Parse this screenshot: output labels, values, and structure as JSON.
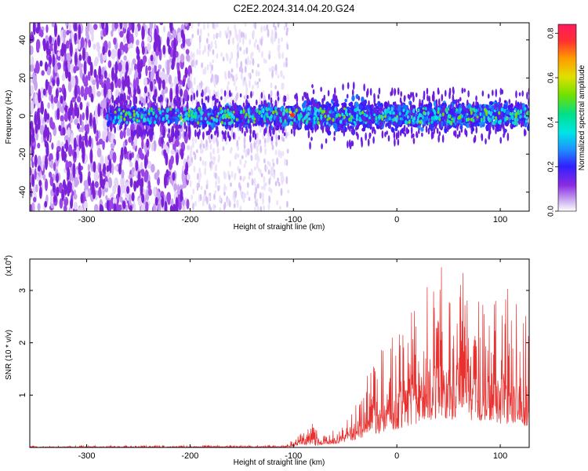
{
  "title": "C2E2.2024.314.04.20.G24",
  "chart_data": [
    {
      "type": "heatmap",
      "xlabel": "Height of straight line (km)",
      "ylabel": "Frequency (Hz)",
      "xlim": [
        -355,
        128
      ],
      "ylim": [
        -50,
        49
      ],
      "x_ticks": [
        -300,
        -200,
        -100,
        0,
        100
      ],
      "x_tick_labels": [
        "-300",
        "-200",
        "-100",
        "0",
        "100"
      ],
      "y_ticks": [
        -40,
        -20,
        0,
        20,
        40
      ],
      "y_tick_labels": [
        "-40",
        "-20",
        "0",
        "20",
        "40"
      ],
      "colorbar": {
        "label": "Normalized spectral amplitude",
        "range": [
          0.0,
          0.84
        ],
        "ticks": [
          0.0,
          0.2,
          0.4,
          0.6,
          0.8
        ],
        "tick_labels": [
          "0.0",
          "0.2",
          "0.4",
          "0.6",
          "0.8"
        ],
        "colormap": "rainbow (purple to red)"
      },
      "description_regions": [
        {
          "x_range": [
            -355,
            -200
          ],
          "freq_range": [
            -50,
            49
          ],
          "amplitude": "≈0.02–0.08 (scattered noise)"
        },
        {
          "x_range": [
            -200,
            -105
          ],
          "freq_range": [
            -50,
            49
          ],
          "amplitude": "≈0.01–0.03 (faint noise)"
        },
        {
          "x_range": [
            -280,
            128
          ],
          "freq_range": [
            -10,
            10
          ],
          "amplitude": "≈0.1–0.4 (band near 0 Hz), peak ≈0.84 near x=-100"
        }
      ],
      "grid": false
    },
    {
      "type": "line",
      "xlabel": "Height of straight line (km)",
      "ylabel": "SNR (10 * v/v)",
      "multiplier_label": "(x10",
      "multiplier_exp": "4",
      "xlim": [
        -355,
        128
      ],
      "ylim": [
        0,
        3.6
      ],
      "x_ticks": [
        -300,
        -200,
        -100,
        0,
        100
      ],
      "x_tick_labels": [
        "-300",
        "-200",
        "-100",
        "0",
        "100"
      ],
      "y_ticks": [
        1,
        2,
        3
      ],
      "y_tick_labels": [
        "1",
        "2",
        "3"
      ],
      "series": [
        {
          "color": "#e8302e",
          "envelope_x": [
            -355,
            -110,
            -100,
            -90,
            -80,
            -70,
            -60,
            -50,
            -40,
            -30,
            -20,
            -10,
            0,
            10,
            20,
            30,
            40,
            50,
            60,
            70,
            80,
            90,
            100,
            110,
            120,
            128
          ],
          "envelope_min": [
            0.0,
            0.0,
            0.02,
            0.04,
            0.03,
            0.05,
            0.06,
            0.1,
            0.15,
            0.2,
            0.25,
            0.3,
            0.35,
            0.4,
            0.45,
            0.5,
            0.55,
            0.55,
            0.5,
            0.5,
            0.5,
            0.5,
            0.45,
            0.45,
            0.4,
            0.4
          ],
          "envelope_max": [
            0.03,
            0.05,
            0.15,
            0.35,
            0.55,
            0.3,
            0.35,
            0.5,
            0.9,
            1.4,
            1.9,
            2.2,
            2.3,
            2.5,
            2.8,
            3.2,
            3.6,
            3.4,
            3.6,
            3.1,
            2.8,
            2.7,
            2.9,
            3.2,
            3.0,
            2.6
          ]
        }
      ],
      "grid": false
    }
  ]
}
